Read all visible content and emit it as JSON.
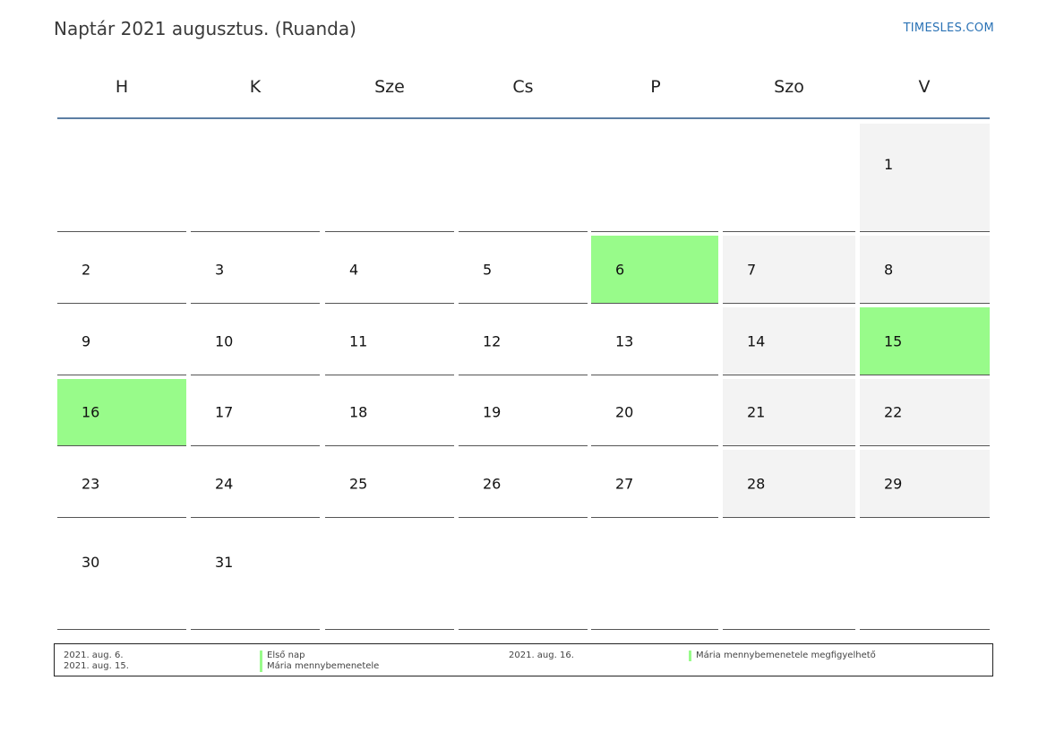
{
  "header": {
    "title": "Naptár 2021 augusztus. (Ruanda)",
    "brand": "TIMESLES.COM"
  },
  "weekdays": [
    "H",
    "K",
    "Sze",
    "Cs",
    "P",
    "Szo",
    "V"
  ],
  "weeks": [
    [
      null,
      null,
      null,
      null,
      null,
      null,
      1
    ],
    [
      2,
      3,
      4,
      5,
      6,
      7,
      8
    ],
    [
      9,
      10,
      11,
      12,
      13,
      14,
      15
    ],
    [
      16,
      17,
      18,
      19,
      20,
      21,
      22
    ],
    [
      23,
      24,
      25,
      26,
      27,
      28,
      29
    ],
    [
      30,
      31,
      null,
      null,
      null,
      null,
      null
    ]
  ],
  "holiday_days": [
    6,
    15,
    16
  ],
  "colors": {
    "holiday": "#98fb8a",
    "weekend": "#f3f3f3",
    "header_rule": "#5c7ea3",
    "brand": "#2a72b5"
  },
  "legend": [
    {
      "date": "2021. aug. 6.",
      "name": "Első nap"
    },
    {
      "date": "2021. aug. 15.",
      "name": "Mária mennybemenetele"
    },
    {
      "date": "2021. aug. 16.",
      "name": "Mária mennybemenetele megfigyelhető"
    }
  ]
}
